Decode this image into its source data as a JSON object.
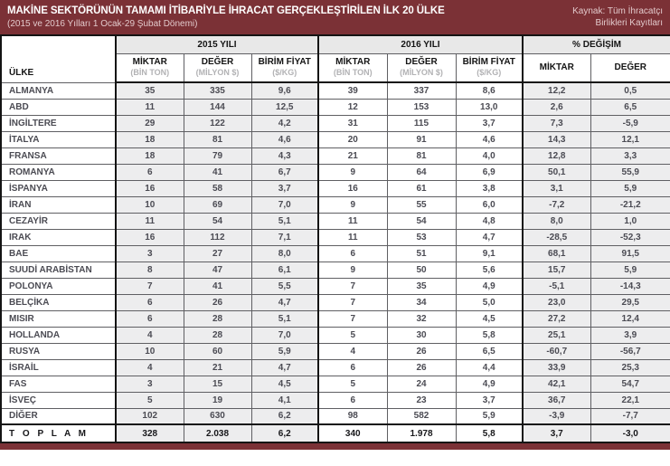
{
  "header": {
    "title": "MAKİNE SEKTÖRÜNÜN TAMAMI İTİBARİYLE İHRACAT GERÇEKLEŞTİRİLEN İLK 20 ÜLKE",
    "subtitle": "(2015 ve 2016 Yılları 1 Ocak-29 Şubat Dönemi)",
    "source_line1": "Kaynak: Tüm İhracatçı",
    "source_line2": "Birlikleri Kayıtları"
  },
  "colors": {
    "band_maroon": "#7b3136",
    "group_header_gray": "#e8e8e8",
    "shaded_column_gray": "#ededee",
    "unit_text_gray": "#b2b2b4"
  },
  "table": {
    "country_header": "ÜLKE",
    "groups": [
      "2015 YILI",
      "2016 YILI",
      "% DEĞİŞİM"
    ],
    "columns": [
      {
        "label": "MİKTAR",
        "unit": "(BİN TON)"
      },
      {
        "label": "DEĞER",
        "unit": "(MİLYON $)"
      },
      {
        "label": "BİRİM FİYAT",
        "unit": "($/KG)"
      },
      {
        "label": "MİKTAR",
        "unit": "(BİN TON)"
      },
      {
        "label": "DEĞER",
        "unit": "(MİLYON $)"
      },
      {
        "label": "BİRİM FİYAT",
        "unit": "($/KG)"
      },
      {
        "label": "MİKTAR",
        "unit": ""
      },
      {
        "label": "DEĞER",
        "unit": ""
      }
    ],
    "rows": [
      {
        "country": "ALMANYA",
        "values": [
          "35",
          "335",
          "9,6",
          "39",
          "337",
          "8,6",
          "12,2",
          "0,5"
        ]
      },
      {
        "country": "ABD",
        "values": [
          "11",
          "144",
          "12,5",
          "12",
          "153",
          "13,0",
          "2,6",
          "6,5"
        ]
      },
      {
        "country": "İNGİLTERE",
        "values": [
          "29",
          "122",
          "4,2",
          "31",
          "115",
          "3,7",
          "7,3",
          "-5,9"
        ]
      },
      {
        "country": "İTALYA",
        "values": [
          "18",
          "81",
          "4,6",
          "20",
          "91",
          "4,6",
          "14,3",
          "12,1"
        ]
      },
      {
        "country": "FRANSA",
        "values": [
          "18",
          "79",
          "4,3",
          "21",
          "81",
          "4,0",
          "12,8",
          "3,3"
        ]
      },
      {
        "country": "ROMANYA",
        "values": [
          "6",
          "41",
          "6,7",
          "9",
          "64",
          "6,9",
          "50,1",
          "55,9"
        ]
      },
      {
        "country": "İSPANYA",
        "values": [
          "16",
          "58",
          "3,7",
          "16",
          "61",
          "3,8",
          "3,1",
          "5,9"
        ]
      },
      {
        "country": "İRAN",
        "values": [
          "10",
          "69",
          "7,0",
          "9",
          "55",
          "6,0",
          "-7,2",
          "-21,2"
        ]
      },
      {
        "country": "CEZAYİR",
        "values": [
          "11",
          "54",
          "5,1",
          "11",
          "54",
          "4,8",
          "8,0",
          "1,0"
        ]
      },
      {
        "country": "IRAK",
        "values": [
          "16",
          "112",
          "7,1",
          "11",
          "53",
          "4,7",
          "-28,5",
          "-52,3"
        ]
      },
      {
        "country": "BAE",
        "values": [
          "3",
          "27",
          "8,0",
          "6",
          "51",
          "9,1",
          "68,1",
          "91,5"
        ]
      },
      {
        "country": "SUUDİ ARABİSTAN",
        "values": [
          "8",
          "47",
          "6,1",
          "9",
          "50",
          "5,6",
          "15,7",
          "5,9"
        ]
      },
      {
        "country": "POLONYA",
        "values": [
          "7",
          "41",
          "5,5",
          "7",
          "35",
          "4,9",
          "-5,1",
          "-14,3"
        ]
      },
      {
        "country": "BELÇİKA",
        "values": [
          "6",
          "26",
          "4,7",
          "7",
          "34",
          "5,0",
          "23,0",
          "29,5"
        ]
      },
      {
        "country": "MISIR",
        "values": [
          "6",
          "28",
          "5,1",
          "7",
          "32",
          "4,5",
          "27,2",
          "12,4"
        ]
      },
      {
        "country": "HOLLANDA",
        "values": [
          "4",
          "28",
          "7,0",
          "5",
          "30",
          "5,8",
          "25,1",
          "3,9"
        ]
      },
      {
        "country": "RUSYA",
        "values": [
          "10",
          "60",
          "5,9",
          "4",
          "26",
          "6,5",
          "-60,7",
          "-56,7"
        ]
      },
      {
        "country": "İSRAİL",
        "values": [
          "4",
          "21",
          "4,7",
          "6",
          "26",
          "4,4",
          "33,9",
          "25,3"
        ]
      },
      {
        "country": "FAS",
        "values": [
          "3",
          "15",
          "4,5",
          "5",
          "24",
          "4,9",
          "42,1",
          "54,7"
        ]
      },
      {
        "country": "İSVEÇ",
        "values": [
          "5",
          "19",
          "4,1",
          "6",
          "23",
          "3,7",
          "36,7",
          "22,1"
        ]
      },
      {
        "country": "DİĞER",
        "values": [
          "102",
          "630",
          "6,2",
          "98",
          "582",
          "5,9",
          "-3,9",
          "-7,7"
        ]
      }
    ],
    "total": {
      "label": "T O P L A M",
      "values": [
        "328",
        "2.038",
        "6,2",
        "340",
        "1.978",
        "5,8",
        "3,7",
        "-3,0"
      ]
    }
  }
}
